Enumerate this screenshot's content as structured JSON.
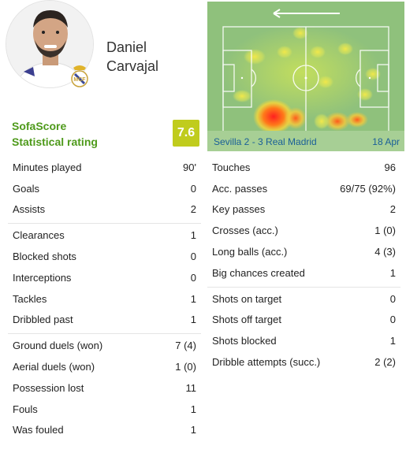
{
  "player": {
    "first_name": "Daniel",
    "last_name": "Carvajal"
  },
  "rating": {
    "label_line1": "SofaScore",
    "label_line2": "Statistical rating",
    "value": "7.6",
    "color": "#c0cc1d"
  },
  "match": {
    "result": "Sevilla 2 - 3 Real Madrid",
    "date": "18 Apr"
  },
  "stats_left": [
    [
      {
        "label": "Minutes played",
        "value": "90'"
      },
      {
        "label": "Goals",
        "value": "0"
      },
      {
        "label": "Assists",
        "value": "2"
      }
    ],
    [
      {
        "label": "Clearances",
        "value": "1"
      },
      {
        "label": "Blocked shots",
        "value": "0"
      },
      {
        "label": "Interceptions",
        "value": "0"
      },
      {
        "label": "Tackles",
        "value": "1"
      },
      {
        "label": "Dribbled past",
        "value": "1"
      }
    ],
    [
      {
        "label": "Ground duels (won)",
        "value": "7 (4)"
      },
      {
        "label": "Aerial duels (won)",
        "value": "1 (0)"
      },
      {
        "label": "Possession lost",
        "value": "11"
      },
      {
        "label": "Fouls",
        "value": "1"
      },
      {
        "label": "Was fouled",
        "value": "1"
      }
    ]
  ],
  "stats_right": [
    [
      {
        "label": "Touches",
        "value": "96"
      },
      {
        "label": "Acc. passes",
        "value": "69/75 (92%)"
      },
      {
        "label": "Key passes",
        "value": "2"
      },
      {
        "label": "Crosses (acc.)",
        "value": "1 (0)"
      },
      {
        "label": "Long balls (acc.)",
        "value": "4 (3)"
      },
      {
        "label": "Big chances created",
        "value": "1"
      }
    ],
    [
      {
        "label": "Shots on target",
        "value": "0"
      },
      {
        "label": "Shots off target",
        "value": "0"
      },
      {
        "label": "Shots blocked",
        "value": "1"
      },
      {
        "label": "Dribble attempts (succ.)",
        "value": "2 (2)"
      }
    ]
  ]
}
